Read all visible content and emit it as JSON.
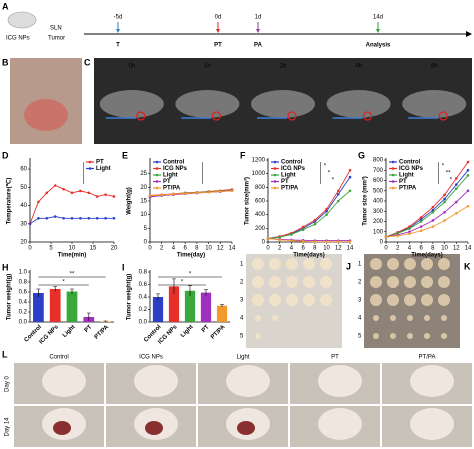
{
  "timeline": {
    "label": "A",
    "subject": [
      "ICG NPs",
      "SLN",
      "Tumor"
    ],
    "events": [
      {
        "day": "-5d",
        "name": "T",
        "color": "#2f7fc1"
      },
      {
        "day": "0d",
        "name": "PT",
        "color": "#d9262b"
      },
      {
        "day": "1d",
        "name": "PA",
        "color": "#8b3fa0"
      },
      {
        "day": "14d",
        "name": "Analysis",
        "color": "#2e9e3a"
      }
    ]
  },
  "photos": {
    "B": {
      "label": "B"
    },
    "C": {
      "label": "C",
      "times": [
        "0h",
        "1h",
        "2h",
        "4h",
        "6h"
      ]
    },
    "J": {
      "label": "J",
      "rows": [
        "1",
        "2",
        "3",
        "4",
        "5"
      ]
    },
    "K": {
      "label": "K",
      "rows": [
        "1",
        "2",
        "3",
        "4",
        "5"
      ]
    },
    "L": {
      "label": "L",
      "columns": [
        "Control",
        "ICG NPs",
        "Light",
        "PT",
        "PT/PA"
      ],
      "rows": [
        "Day 0",
        "Day 14"
      ]
    }
  },
  "chart_data": [
    {
      "label": "D",
      "type": "line",
      "xlabel": "Time(min)",
      "ylabel": "Temperature(℃)",
      "x": [
        0,
        2,
        4,
        6,
        8,
        10,
        12,
        14,
        16,
        18,
        20
      ],
      "xlim": [
        0,
        20
      ],
      "xticks": [
        0,
        5,
        10,
        15,
        20
      ],
      "ylim": [
        20,
        65
      ],
      "yticks": [
        20,
        30,
        40,
        50,
        60
      ],
      "legend": "upper right",
      "series": [
        {
          "name": "PT",
          "color": "#e8302a",
          "values": [
            30,
            42,
            47,
            51,
            49,
            47,
            48,
            47,
            45,
            46,
            45
          ]
        },
        {
          "name": "Light",
          "color": "#2b3fc8",
          "values": [
            30,
            33,
            33,
            34,
            33,
            33,
            33,
            33,
            33,
            33,
            33
          ]
        }
      ]
    },
    {
      "label": "E",
      "type": "line",
      "xlabel": "Time(day)",
      "ylabel": "Weight(g)",
      "x": [
        0,
        2,
        4,
        6,
        8,
        10,
        12,
        14
      ],
      "xlim": [
        0,
        14
      ],
      "xticks": [
        0,
        2,
        4,
        6,
        8,
        10,
        12,
        14
      ],
      "ylim": [
        0,
        30
      ],
      "yticks": [
        0,
        5,
        10,
        15,
        20,
        25
      ],
      "legend": "upper left",
      "series": [
        {
          "name": "Control",
          "color": "#2b3fc8",
          "values": [
            16.5,
            17,
            17.5,
            17.8,
            18,
            18.3,
            18.6,
            19
          ]
        },
        {
          "name": "ICG NPs",
          "color": "#e8302a",
          "values": [
            17,
            17.3,
            17.6,
            18,
            18.2,
            18.5,
            18.8,
            19.2
          ]
        },
        {
          "name": "Light",
          "color": "#3aa83a",
          "values": [
            16.8,
            17.1,
            17.4,
            17.8,
            18.1,
            18.3,
            18.6,
            18.9
          ]
        },
        {
          "name": "PT",
          "color": "#a030c0",
          "values": [
            16.6,
            17,
            17.3,
            17.6,
            17.9,
            18.2,
            18.4,
            18.8
          ]
        },
        {
          "name": "PT/PA",
          "color": "#f29a2e",
          "values": [
            16.9,
            17.2,
            17.5,
            17.7,
            18,
            18.2,
            18.5,
            18.7
          ]
        }
      ]
    },
    {
      "label": "F",
      "type": "line",
      "xlabel": "Time(days)",
      "ylabel": "Tumor size(mm³)",
      "x": [
        0,
        2,
        4,
        6,
        8,
        10,
        12,
        14
      ],
      "xlim": [
        0,
        14
      ],
      "xticks": [
        0,
        2,
        4,
        6,
        8,
        10,
        12,
        14
      ],
      "ylim": [
        0,
        1200
      ],
      "yticks": [
        0,
        200,
        400,
        600,
        800,
        1000,
        1200
      ],
      "legend": "upper left",
      "annotations": [
        "*",
        "*",
        "*"
      ],
      "series": [
        {
          "name": "Control",
          "color": "#2b3fc8",
          "values": [
            50,
            80,
            120,
            200,
            300,
            450,
            700,
            950
          ]
        },
        {
          "name": "ICG NPs",
          "color": "#e8302a",
          "values": [
            50,
            80,
            130,
            220,
            320,
            480,
            750,
            1050
          ]
        },
        {
          "name": "Light",
          "color": "#3aa83a",
          "values": [
            50,
            70,
            110,
            180,
            260,
            400,
            600,
            750
          ]
        },
        {
          "name": "PT",
          "color": "#a030c0",
          "values": [
            50,
            40,
            30,
            25,
            20,
            20,
            20,
            20
          ]
        },
        {
          "name": "PT/PA",
          "color": "#f29a2e",
          "values": [
            50,
            30,
            20,
            10,
            5,
            5,
            5,
            5
          ]
        }
      ]
    },
    {
      "label": "G",
      "type": "line",
      "xlabel": "Time(days)",
      "ylabel": "Tumor size (mm³)",
      "x": [
        0,
        2,
        4,
        6,
        8,
        10,
        12,
        14
      ],
      "xlim": [
        0,
        14
      ],
      "xticks": [
        0,
        2,
        4,
        6,
        8,
        10,
        12,
        14
      ],
      "ylim": [
        0,
        800
      ],
      "yticks": [
        0,
        100,
        200,
        300,
        400,
        500,
        600,
        700,
        800
      ],
      "legend": "upper left",
      "annotations": [
        "*",
        "**",
        "*"
      ],
      "series": [
        {
          "name": "Control",
          "color": "#2b3fc8",
          "values": [
            50,
            90,
            140,
            220,
            310,
            420,
            560,
            700
          ]
        },
        {
          "name": "ICG NPs",
          "color": "#e8302a",
          "values": [
            50,
            95,
            150,
            240,
            340,
            460,
            620,
            780
          ]
        },
        {
          "name": "Light",
          "color": "#3aa83a",
          "values": [
            50,
            85,
            130,
            200,
            290,
            390,
            520,
            650
          ]
        },
        {
          "name": "PT",
          "color": "#a030c0",
          "values": [
            50,
            70,
            100,
            150,
            210,
            290,
            390,
            500
          ]
        },
        {
          "name": "PT/PA",
          "color": "#f29a2e",
          "values": [
            50,
            60,
            80,
            110,
            150,
            210,
            280,
            350
          ]
        }
      ]
    },
    {
      "label": "H",
      "type": "bar",
      "ylabel": "Tumor weight(g)",
      "categories": [
        "Control",
        "ICG NPs",
        "Light",
        "PT",
        "PT/PA"
      ],
      "colors": [
        "#2b3fc8",
        "#e8302a",
        "#3aa83a",
        "#a030c0",
        "#f29a2e"
      ],
      "values": [
        0.58,
        0.66,
        0.61,
        0.1,
        0.01
      ],
      "errors": [
        0.08,
        0.05,
        0.05,
        0.08,
        0.01
      ],
      "ylim": [
        0,
        1.0
      ],
      "yticks": [
        {
          "value": 0,
          "label": "0.0"
        },
        0.2,
        0.4,
        0.6,
        0.8,
        {
          "value": 1,
          "label": "1.0"
        }
      ],
      "annotations": [
        "**",
        "*"
      ]
    },
    {
      "label": "I",
      "type": "bar",
      "ylabel": "Tumor weight(g)",
      "categories": [
        "Control",
        "ICG NPs",
        "Light",
        "PT",
        "PT/PA"
      ],
      "colors": [
        "#2b3fc8",
        "#e8302a",
        "#3aa83a",
        "#a030c0",
        "#f29a2e"
      ],
      "values": [
        0.4,
        0.57,
        0.5,
        0.47,
        0.26
      ],
      "errors": [
        0.05,
        0.12,
        0.08,
        0.05,
        0.02
      ],
      "ylim": [
        0,
        0.8
      ],
      "yticks": [
        {
          "value": 0,
          "label": "0.0"
        },
        0.2,
        0.4,
        0.6,
        0.8
      ],
      "annotations": [
        "*",
        "*"
      ]
    }
  ]
}
